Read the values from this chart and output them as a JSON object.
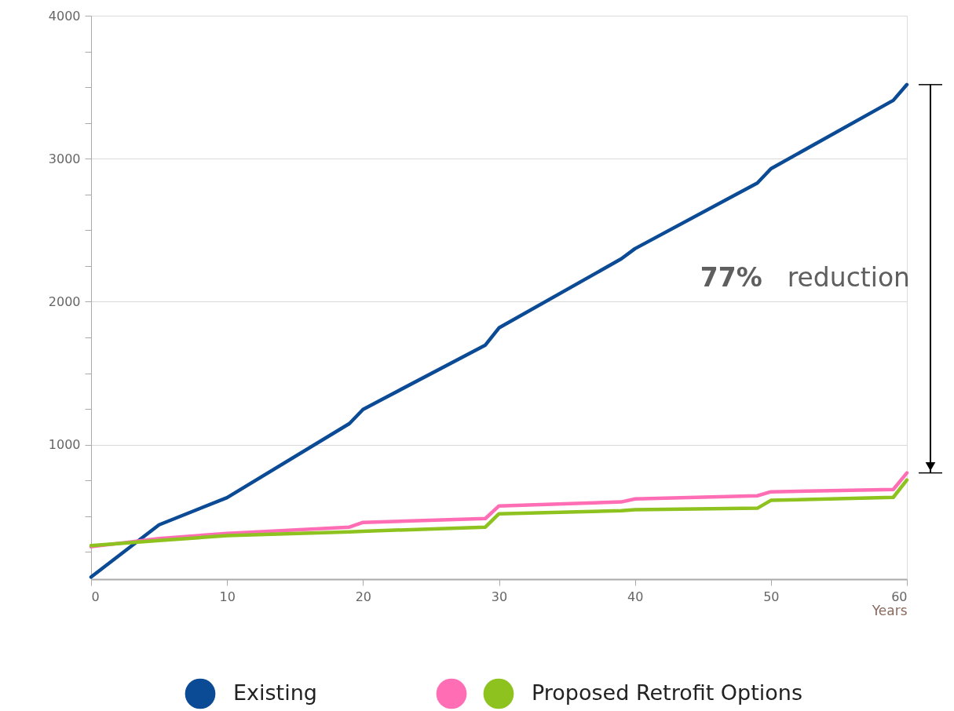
{
  "chart_data": {
    "type": "line",
    "xlabel": "Years",
    "x": [
      0,
      5,
      10,
      19,
      20,
      29,
      30,
      39,
      40,
      49,
      50,
      59,
      60
    ],
    "series": [
      {
        "name": "Existing",
        "color": "#0b4a94",
        "values": [
          75,
          440,
          630,
          1148,
          1247,
          1697,
          1817,
          2300,
          2371,
          2830,
          2930,
          3408,
          3518
        ]
      },
      {
        "color": "#ff6eb4",
        "values": [
          287,
          344,
          380,
          424,
          457,
          484,
          572,
          600,
          621,
          643,
          671,
          687,
          803
        ]
      },
      {
        "name": "Proposed Retrofit Options",
        "color": "#8dc21f",
        "values": [
          295,
          330,
          364,
          391,
          395,
          424,
          517,
          539,
          545,
          556,
          611,
          632,
          753
        ]
      }
    ],
    "xlim": [
      0,
      60
    ],
    "xticks": [
      0,
      10,
      20,
      30,
      40,
      50,
      60
    ],
    "ylim": [
      60,
      4000
    ],
    "yticks": [
      {
        "value": 250,
        "label": null
      },
      {
        "value": 500,
        "label": null
      },
      {
        "value": 750,
        "label": null
      },
      1000,
      {
        "value": 1250,
        "label": null
      },
      {
        "value": 1500,
        "label": null
      },
      {
        "value": 1750,
        "label": null
      },
      2000,
      {
        "value": 2250,
        "label": null
      },
      {
        "value": 2500,
        "label": null
      },
      {
        "value": 2750,
        "label": null
      },
      3000,
      {
        "value": 3250,
        "label": null
      },
      {
        "value": 3500,
        "label": null
      },
      {
        "value": 3750,
        "label": null
      },
      4000
    ],
    "annotations": [
      "77% reduction"
    ],
    "grid": "y",
    "legend": "bottom",
    "marker": "none",
    "line_style": "solid"
  }
}
